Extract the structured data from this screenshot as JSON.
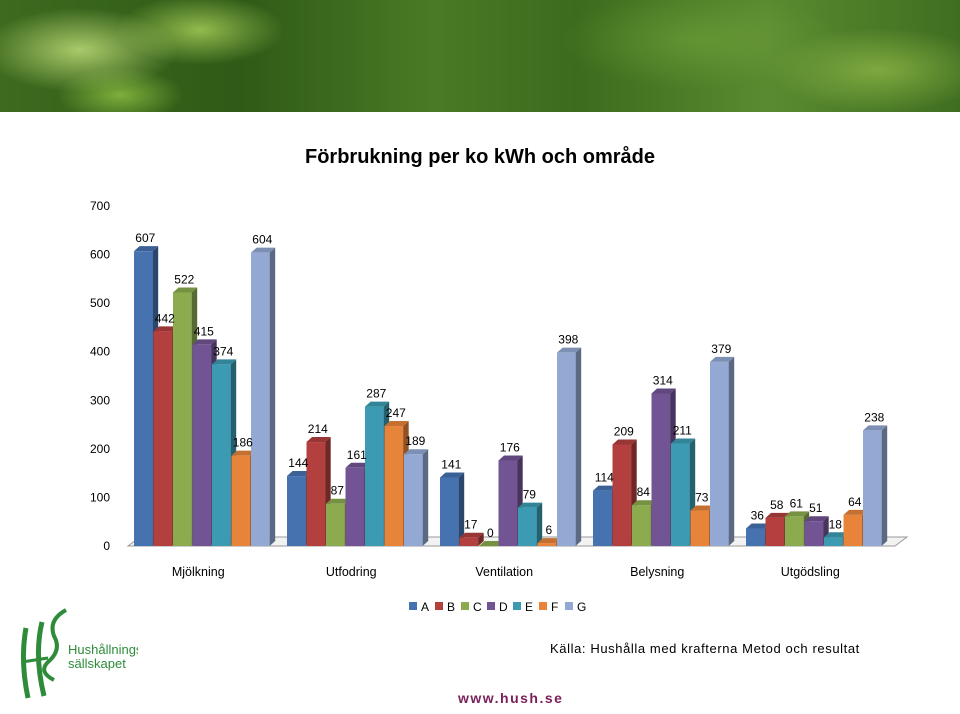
{
  "banner": {
    "icon": "green-foliage-banner"
  },
  "chart_data": {
    "type": "bar",
    "title": "Förbrukning per ko kWh och område",
    "categories": [
      "Mjölkning",
      "Utfodring",
      "Ventilation",
      "Belysning",
      "Utgödsling"
    ],
    "series": [
      {
        "name": "A",
        "color": "#4672b0",
        "values": [
          607,
          144,
          141,
          114,
          36
        ]
      },
      {
        "name": "B",
        "color": "#b3403e",
        "values": [
          442,
          214,
          17,
          209,
          58
        ]
      },
      {
        "name": "C",
        "color": "#8cab4f",
        "values": [
          522,
          87,
          0,
          84,
          61
        ]
      },
      {
        "name": "D",
        "color": "#725494",
        "values": [
          415,
          161,
          176,
          314,
          51
        ]
      },
      {
        "name": "E",
        "color": "#3c9bb2",
        "values": [
          374,
          287,
          79,
          211,
          18
        ]
      },
      {
        "name": "F",
        "color": "#e8843a",
        "values": [
          186,
          247,
          6,
          73,
          64
        ]
      },
      {
        "name": "G",
        "color": "#93a9d4",
        "values": [
          604,
          189,
          398,
          379,
          238
        ]
      }
    ],
    "y_ticks": [
      "0",
      "100",
      "200",
      "300",
      "400",
      "500",
      "600",
      "700"
    ],
    "ylim": [
      0,
      700
    ],
    "grid": false,
    "legend_position": "bottom"
  },
  "footer": {
    "source": "Källa: Hushålla med krafterna Metod och resultat",
    "url": "www.hush.se",
    "logo_line1": "Hushållnings",
    "logo_line2": "sällskapet",
    "logo_icon": "hs-logo-icon"
  }
}
